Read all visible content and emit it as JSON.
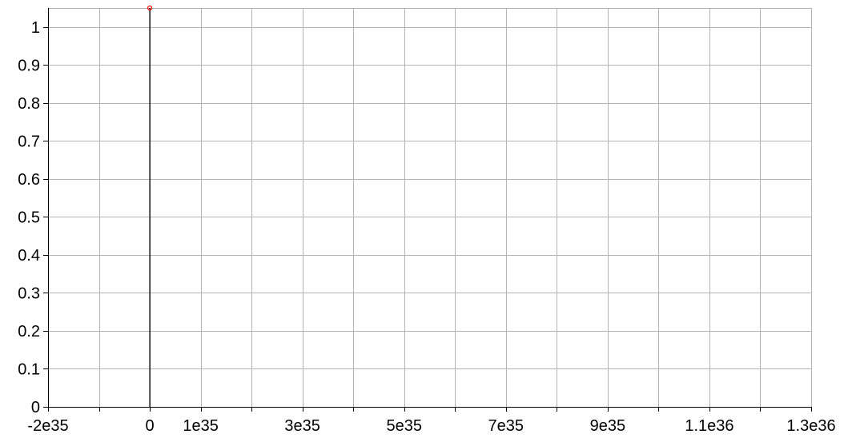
{
  "chart_data": {
    "type": "line",
    "title": "",
    "xlabel": "",
    "ylabel": "",
    "xlim": [
      -2e+35,
      1.3e+36
    ],
    "ylim": [
      0,
      1.05
    ],
    "x_ticks": [
      {
        "value": -2e+35,
        "label": "-2e35"
      },
      {
        "value": 0,
        "label": "0"
      },
      {
        "value": 1e+35,
        "label": "1e35"
      },
      {
        "value": 3e+35,
        "label": "3e35"
      },
      {
        "value": 5e+35,
        "label": "5e35"
      },
      {
        "value": 7e+35,
        "label": "7e35"
      },
      {
        "value": 9e+35,
        "label": "9e35"
      },
      {
        "value": 1.1e+36,
        "label": "1.1e36"
      },
      {
        "value": 1.3e+36,
        "label": "1.3e36"
      }
    ],
    "x_grid": [
      -2e+35,
      -1e+35,
      0,
      1e+35,
      2e+35,
      3e+35,
      4e+35,
      5e+35,
      6e+35,
      7e+35,
      8e+35,
      9e+35,
      1e+36,
      1.1e+36,
      1.2e+36,
      1.3e+36
    ],
    "y_ticks": [
      {
        "value": 0,
        "label": "0"
      },
      {
        "value": 0.1,
        "label": "0.1"
      },
      {
        "value": 0.2,
        "label": "0.2"
      },
      {
        "value": 0.3,
        "label": "0.3"
      },
      {
        "value": 0.4,
        "label": "0.4"
      },
      {
        "value": 0.5,
        "label": "0.5"
      },
      {
        "value": 0.6,
        "label": "0.6"
      },
      {
        "value": 0.7,
        "label": "0.7"
      },
      {
        "value": 0.8,
        "label": "0.8"
      },
      {
        "value": 0.9,
        "label": "0.9"
      },
      {
        "value": 1,
        "label": "1"
      }
    ],
    "grid": true,
    "legend": "none",
    "series": [
      {
        "color": "#000000",
        "points": [
          {
            "x": 0,
            "y": 0
          },
          {
            "x": 0,
            "y": 1.05
          }
        ]
      }
    ],
    "markers": [
      {
        "x": 0,
        "y": 1.05,
        "color": "#ff0000"
      }
    ]
  }
}
